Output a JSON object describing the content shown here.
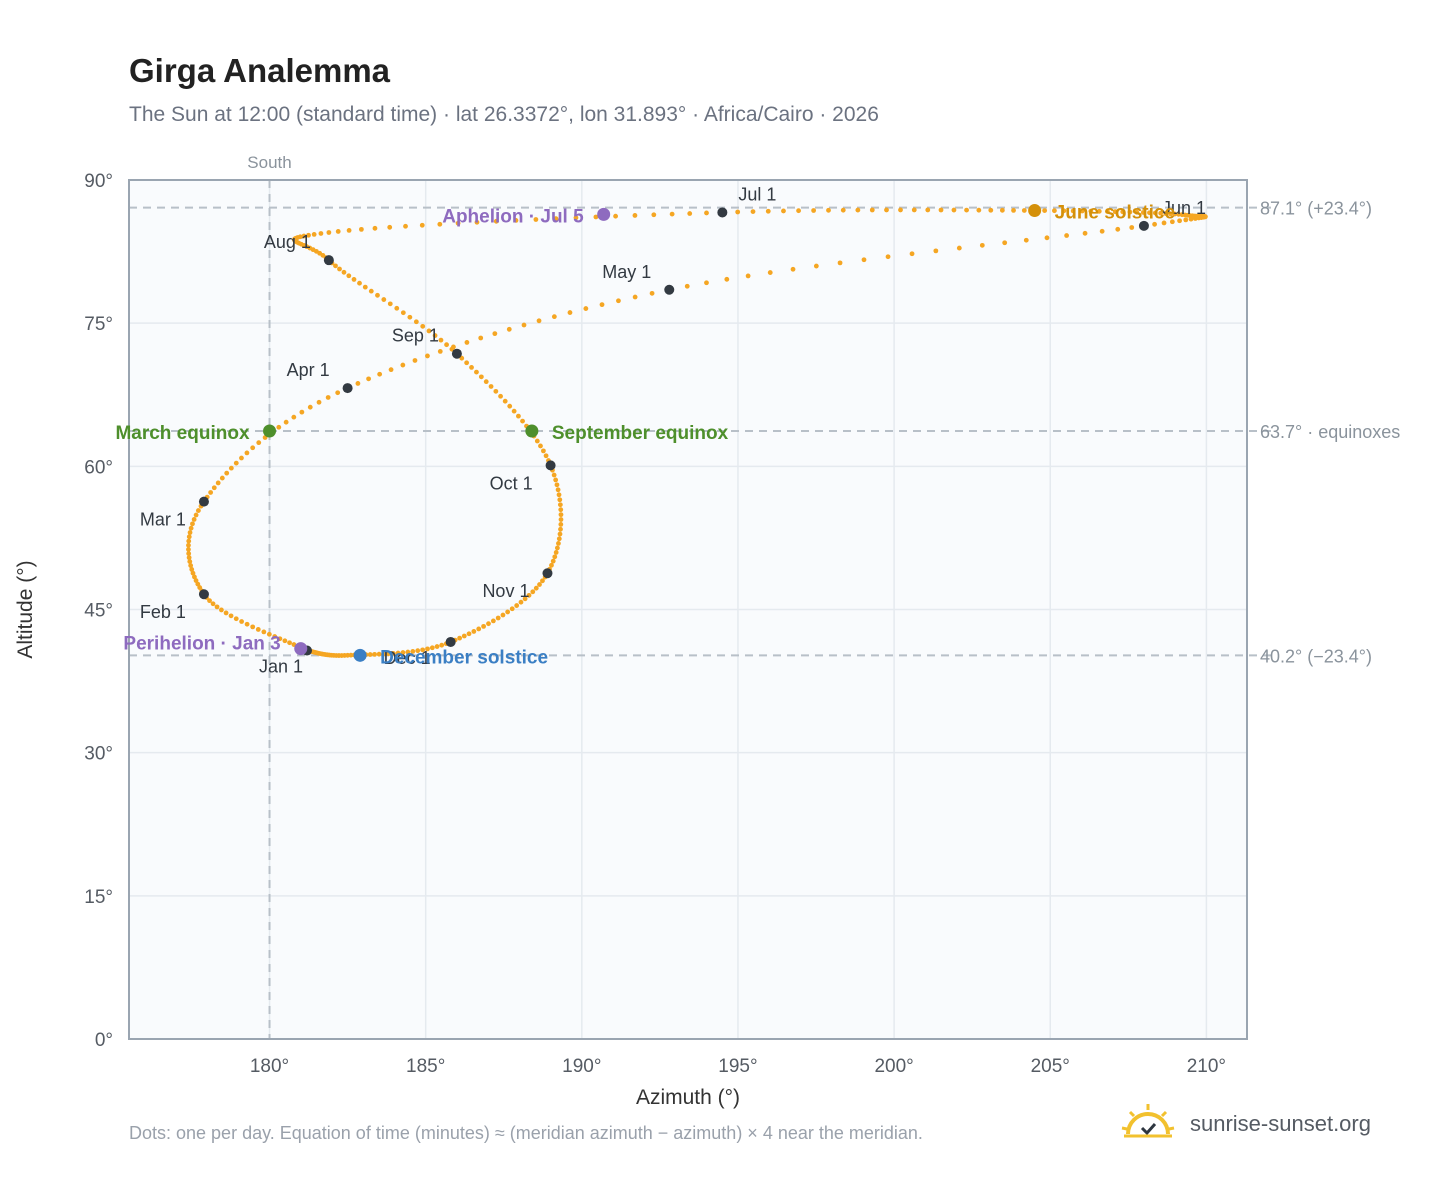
{
  "header": {
    "title": "Girga Analemma",
    "subtitle": "The Sun at 12:00 (standard time) · lat 26.3372°, lon 31.893° · Africa/Cairo · 2026"
  },
  "footer": {
    "note": "Dots: one per day. Equation of time (minutes) ≈ (meridian azimuth − azimuth) × 4 near the meridian.",
    "brand": "sunrise-sunset.org"
  },
  "colors": {
    "path": "#f5a623",
    "month_marker": "#333a42",
    "equinox": "#4e8f2c",
    "june_solstice": "#d4900a",
    "december_solstice": "#3b7fc4",
    "aphelion_perihelion": "#8e6bbf",
    "grid": "#e5eaef",
    "plot_bg": "#f9fbfd",
    "reference_line": "#b8c0c8",
    "brand_sun": "#f2c12e"
  },
  "chart_data": {
    "type": "scatter",
    "xlabel": "Azimuth (°)",
    "ylabel": "Altitude (°)",
    "xlim": [
      175.5,
      211.3
    ],
    "ylim": [
      0,
      90
    ],
    "x_ticks": [
      {
        "value": 180,
        "label": "180°"
      },
      {
        "value": 185,
        "label": "185°"
      },
      {
        "value": 190,
        "label": "190°"
      },
      {
        "value": 195,
        "label": "195°"
      },
      {
        "value": 200,
        "label": "200°"
      },
      {
        "value": 205,
        "label": "205°"
      },
      {
        "value": 210,
        "label": "210°"
      }
    ],
    "y_ticks": [
      {
        "value": 0,
        "label": "0°"
      },
      {
        "value": 15,
        "label": "15°"
      },
      {
        "value": 30,
        "label": "30°"
      },
      {
        "value": 45,
        "label": "45°"
      },
      {
        "value": 60,
        "label": "60°"
      },
      {
        "value": 75,
        "label": "75°"
      },
      {
        "value": 90,
        "label": "90°"
      }
    ],
    "grid": true,
    "meridian": {
      "azimuth": 180,
      "label": "South"
    },
    "reference_lines": [
      {
        "altitude": 87.1,
        "label": "87.1° (+23.4°)"
      },
      {
        "altitude": 63.7,
        "label": "63.7° · equinoxes"
      },
      {
        "altitude": 40.2,
        "label": "40.2° (−23.4°)"
      }
    ],
    "series": [
      {
        "marker": "daily dot",
        "points": [
          [
            181.2,
            40.7
          ],
          [
            177.9,
            46.6
          ],
          [
            177.9,
            56.3
          ],
          [
            182.5,
            68.2
          ],
          [
            192.8,
            78.5
          ],
          [
            208.0,
            85.2
          ],
          [
            209.4,
            86.3
          ],
          [
            204.5,
            86.8
          ],
          [
            194.5,
            86.6
          ],
          [
            181.9,
            84.5
          ],
          [
            181.9,
            81.6
          ],
          [
            186.0,
            71.8
          ],
          [
            189.0,
            60.1
          ],
          [
            188.9,
            48.8
          ],
          [
            185.8,
            41.6
          ],
          [
            182.5,
            40.2
          ],
          [
            181.2,
            40.7
          ]
        ]
      }
    ],
    "month_markers": [
      {
        "label": "Jan 1",
        "x": 181.2,
        "y": 40.7
      },
      {
        "label": "Feb 1",
        "x": 177.9,
        "y": 46.6
      },
      {
        "label": "Mar 1",
        "x": 177.9,
        "y": 56.3
      },
      {
        "label": "Apr 1",
        "x": 182.5,
        "y": 68.2
      },
      {
        "label": "May 1",
        "x": 192.8,
        "y": 78.5
      },
      {
        "label": "Jun 1",
        "x": 208.0,
        "y": 85.2
      },
      {
        "label": "Jul 1",
        "x": 194.5,
        "y": 86.6
      },
      {
        "label": "Aug 1",
        "x": 181.9,
        "y": 81.6
      },
      {
        "label": "Sep 1",
        "x": 186.0,
        "y": 71.8
      },
      {
        "label": "Oct 1",
        "x": 189.0,
        "y": 60.1
      },
      {
        "label": "Nov 1",
        "x": 188.9,
        "y": 48.8
      },
      {
        "label": "Dec 1",
        "x": 185.8,
        "y": 41.6
      }
    ],
    "events": [
      {
        "label": "March equinox",
        "x": 180.0,
        "y": 63.7,
        "kind": "equinox"
      },
      {
        "label": "September equinox",
        "x": 188.4,
        "y": 63.7,
        "kind": "equinox"
      },
      {
        "label": "June solstice",
        "x": 204.5,
        "y": 86.8,
        "kind": "june_solstice"
      },
      {
        "label": "December solstice",
        "x": 182.9,
        "y": 40.2,
        "kind": "december_solstice"
      },
      {
        "label": "Aphelion · Jul 5",
        "x": 190.7,
        "y": 86.4,
        "kind": "aphelion"
      },
      {
        "label": "Perihelion · Jan 3",
        "x": 181.0,
        "y": 40.9,
        "kind": "perihelion"
      }
    ]
  }
}
